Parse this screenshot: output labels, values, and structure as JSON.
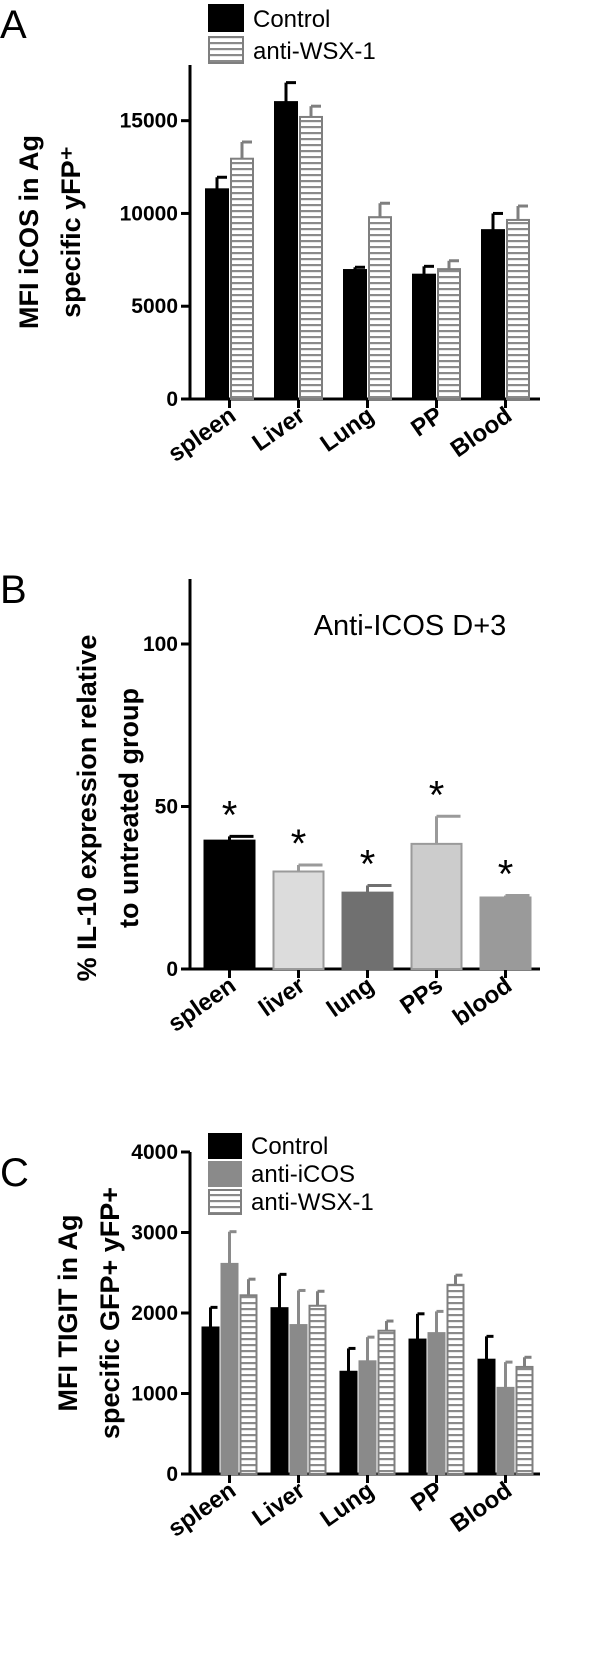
{
  "chart_data": [
    {
      "panel": "A",
      "type": "bar",
      "categories": [
        "spleen",
        "Liver",
        "Lung",
        "PP",
        "Blood"
      ],
      "series": [
        {
          "name": "Control",
          "values": [
            11300,
            16000,
            6950,
            6700,
            9100
          ],
          "errors": [
            650,
            1050,
            150,
            450,
            900
          ],
          "color": "#000000",
          "pattern": "solid"
        },
        {
          "name": "anti-WSX-1",
          "values": [
            12950,
            15200,
            9800,
            7000,
            9650
          ],
          "errors": [
            900,
            580,
            750,
            450,
            750
          ],
          "color": "#7f7f7f",
          "pattern": "hstripe"
        }
      ],
      "ylabel": [
        "MFI iCOS in Ag",
        "specific yFP⁺"
      ],
      "yticks": [
        0,
        5000,
        10000,
        15000
      ],
      "ylim": [
        0,
        18000
      ],
      "legend": "top"
    },
    {
      "panel": "B",
      "type": "bar",
      "title": "Anti-ICOS D+3",
      "categories": [
        "spleen",
        "liver",
        "lung",
        "PPs",
        "blood"
      ],
      "values": [
        39.5,
        30,
        23.5,
        38.5,
        22
      ],
      "errors": [
        1.3,
        2,
        2.2,
        8.5,
        0.6
      ],
      "colors": [
        "#000000",
        "#dcdcdc",
        "#707070",
        "#cccccc",
        "#9a9a9a"
      ],
      "annotations": [
        "*",
        "*",
        "*",
        "*",
        "*"
      ],
      "ylabel": [
        "%  IL-10 expression relative",
        "to untreated group"
      ],
      "yticks": [
        0,
        50,
        100
      ],
      "ylim": [
        0,
        120
      ]
    },
    {
      "panel": "C",
      "type": "bar",
      "categories": [
        "spleen",
        "Liver",
        "Lung",
        "PP",
        "Blood"
      ],
      "series": [
        {
          "name": "Control",
          "values": [
            1820,
            2060,
            1270,
            1670,
            1420
          ],
          "errors": [
            250,
            420,
            290,
            320,
            290
          ],
          "color": "#000000",
          "pattern": "solid"
        },
        {
          "name": "anti-iCOS",
          "values": [
            2610,
            1850,
            1400,
            1750,
            1070
          ],
          "errors": [
            400,
            430,
            300,
            270,
            320
          ],
          "color": "#8a8a8a",
          "pattern": "solid"
        },
        {
          "name": "anti-WSX-1",
          "values": [
            2220,
            2090,
            1780,
            2350,
            1330
          ],
          "errors": [
            200,
            180,
            120,
            120,
            120
          ],
          "color": "#7f7f7f",
          "pattern": "hstripe"
        }
      ],
      "ylabel": [
        "MFI TIGIT in Ag",
        "specific GFP+ yFP+"
      ],
      "yticks": [
        0,
        1000,
        2000,
        3000,
        4000
      ],
      "ylim": [
        0,
        4000
      ],
      "legend": "top"
    }
  ]
}
